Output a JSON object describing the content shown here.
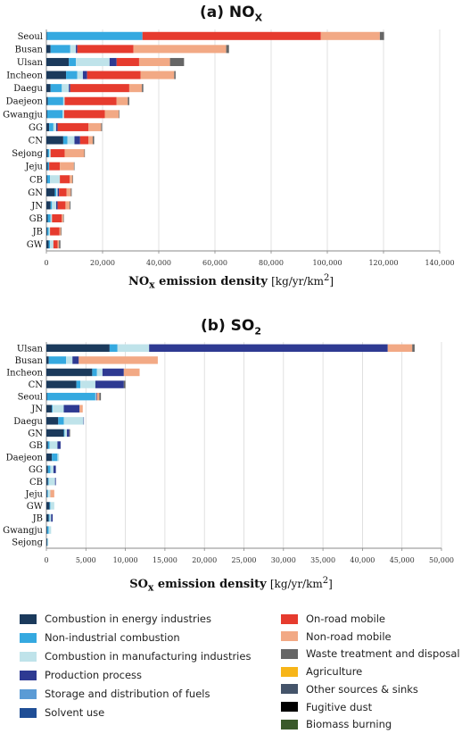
{
  "categories_legend": [
    {
      "key": "energy",
      "label": "Combustion in energy industries",
      "color": "#1b3a5c"
    },
    {
      "key": "nonind",
      "label": "Non-industrial combustion",
      "color": "#35a9e0"
    },
    {
      "key": "manuf",
      "label": "Combustion in manufacturing industries",
      "color": "#bfe3ea"
    },
    {
      "key": "prod",
      "label": "Production process",
      "color": "#2e3a92"
    },
    {
      "key": "storage",
      "label": "Storage and distribution of fuels",
      "color": "#5b9bd5"
    },
    {
      "key": "solvent",
      "label": "Solvent use",
      "color": "#1f4e96"
    },
    {
      "key": "onroad",
      "label": "On-road mobile",
      "color": "#e63b2e"
    },
    {
      "key": "nonroad",
      "label": "Non-road mobile",
      "color": "#f2a985"
    },
    {
      "key": "waste",
      "label": "Waste treatment and disposal",
      "color": "#666666"
    },
    {
      "key": "agri",
      "label": "Agriculture",
      "color": "#f7b518"
    },
    {
      "key": "other",
      "label": "Other sources & sinks",
      "color": "#44546a"
    },
    {
      "key": "fugitive",
      "label": "Fugitive dust",
      "color": "#000000"
    },
    {
      "key": "biomass",
      "label": "Biomass burning",
      "color": "#3a5a2a"
    }
  ],
  "chart_data": [
    {
      "type": "bar",
      "orientation": "horizontal",
      "stacked": true,
      "title_prefix": "(a) NO",
      "title_sub": "X",
      "xlabel_bold": "NO",
      "xlabel_sub": "x",
      "xlabel_rest": " emission density",
      "xlabel_unit": "[kg/yr/km",
      "xlabel_unit_sup": "2",
      "xlabel_unit_end": "]",
      "xlim": [
        0,
        140000
      ],
      "xticks": [
        0,
        20000,
        40000,
        60000,
        80000,
        100000,
        120000,
        140000
      ],
      "tick_labels": [
        "0",
        "20,000",
        "40,000",
        "60,000",
        "80,000",
        "100,000",
        "120,000",
        "140,000"
      ],
      "grid": true,
      "categories": [
        "Seoul",
        "Busan",
        "Ulsan",
        "Incheon",
        "Daegu",
        "Daejeon",
        "Gwangju",
        "GG",
        "CN",
        "Sejong",
        "Jeju",
        "CB",
        "GN",
        "JN",
        "GB",
        "JB",
        "GW"
      ],
      "series": [
        {
          "key": "energy",
          "values": [
            200,
            1500,
            8000,
            7000,
            1500,
            500,
            300,
            1000,
            6000,
            500,
            500,
            300,
            3000,
            1500,
            500,
            300,
            800
          ]
        },
        {
          "key": "nonind",
          "values": [
            34000,
            7000,
            2500,
            4000,
            4000,
            5500,
            5500,
            1500,
            1500,
            500,
            500,
            1000,
            500,
            500,
            1000,
            500,
            500
          ]
        },
        {
          "key": "manuf",
          "values": [
            0,
            2000,
            12000,
            2000,
            2500,
            500,
            500,
            1000,
            2500,
            500,
            0,
            3500,
            500,
            1500,
            500,
            500,
            1200
          ]
        },
        {
          "key": "prod",
          "values": [
            0,
            500,
            2500,
            1500,
            500,
            0,
            0,
            500,
            2000,
            0,
            0,
            0,
            500,
            500,
            0,
            0,
            0
          ]
        },
        {
          "key": "onroad",
          "values": [
            63500,
            20000,
            8000,
            19000,
            21000,
            18500,
            14500,
            11000,
            3000,
            5000,
            3800,
            3500,
            2700,
            2800,
            3500,
            3400,
            1500
          ]
        },
        {
          "key": "nonroad",
          "values": [
            21000,
            33000,
            11000,
            12000,
            4500,
            4000,
            5000,
            4500,
            1500,
            7000,
            5000,
            1000,
            1500,
            1500,
            500,
            500,
            500
          ]
        },
        {
          "key": "waste",
          "values": [
            1500,
            1000,
            5000,
            500,
            500,
            500,
            200,
            300,
            500,
            200,
            200,
            200,
            300,
            300,
            200,
            200,
            500
          ]
        }
      ]
    },
    {
      "type": "bar",
      "orientation": "horizontal",
      "stacked": true,
      "title_prefix": "(b) SO",
      "title_sub": "2",
      "xlabel_bold": "SO",
      "xlabel_sub": "x",
      "xlabel_rest": " emission density",
      "xlabel_unit": "[kg/yr/km",
      "xlabel_unit_sup": "2",
      "xlabel_unit_end": "]",
      "xlim": [
        0,
        50000
      ],
      "xticks": [
        0,
        5000,
        10000,
        15000,
        20000,
        25000,
        30000,
        35000,
        40000,
        45000,
        50000
      ],
      "tick_labels": [
        "0",
        "5,000",
        "10,000",
        "15,000",
        "20,000",
        "25,000",
        "30,000",
        "35,000",
        "40,000",
        "45,000",
        "50,000"
      ],
      "grid": true,
      "categories": [
        "Ulsan",
        "Busan",
        "Incheon",
        "CN",
        "Seoul",
        "JN",
        "Daegu",
        "GN",
        "GB",
        "Daejeon",
        "GG",
        "CB",
        "Jeju",
        "GW",
        "JB",
        "Gwangju",
        "Sejong"
      ],
      "series": [
        {
          "key": "energy",
          "values": [
            8000,
            300,
            5800,
            3800,
            100,
            700,
            1500,
            2200,
            200,
            700,
            200,
            200,
            100,
            400,
            300,
            100,
            100
          ]
        },
        {
          "key": "nonind",
          "values": [
            1000,
            2200,
            600,
            500,
            6100,
            100,
            700,
            100,
            200,
            700,
            300,
            100,
            100,
            100,
            100,
            200,
            50
          ]
        },
        {
          "key": "manuf",
          "values": [
            4000,
            800,
            700,
            1900,
            100,
            1400,
            2500,
            300,
            1000,
            200,
            400,
            800,
            300,
            500,
            200,
            300,
            100
          ]
        },
        {
          "key": "prod",
          "values": [
            30200,
            800,
            2700,
            3600,
            100,
            2000,
            50,
            300,
            400,
            0,
            300,
            100,
            0,
            0,
            200,
            0,
            0
          ]
        },
        {
          "key": "onroad",
          "values": [
            0,
            0,
            0,
            0,
            0,
            0,
            0,
            0,
            0,
            0,
            0,
            0,
            0,
            0,
            0,
            0,
            0
          ]
        },
        {
          "key": "nonroad",
          "values": [
            3100,
            10000,
            2000,
            0,
            300,
            400,
            0,
            0,
            0,
            0,
            0,
            0,
            500,
            0,
            0,
            0,
            0
          ]
        },
        {
          "key": "waste",
          "values": [
            300,
            0,
            0,
            200,
            200,
            0,
            0,
            100,
            0,
            0,
            0,
            0,
            0,
            0,
            0,
            0,
            0
          ]
        }
      ]
    }
  ]
}
